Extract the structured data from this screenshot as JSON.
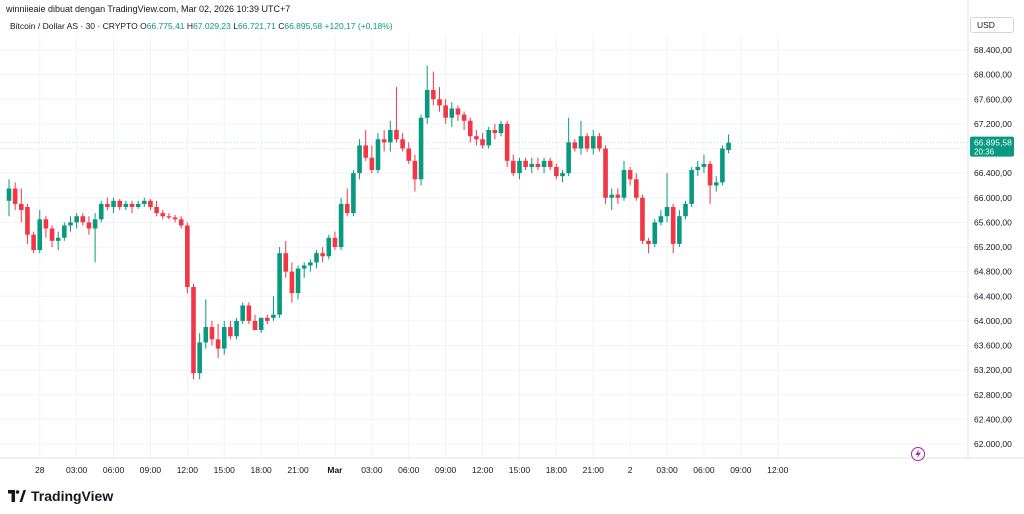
{
  "header": {
    "attribution": "winniieaie dibuat dengan TradingView.com, Mar 02, 2026 10:39 UTC+7"
  },
  "symbol": {
    "name": "Bitcoin / Dollar AS · 30 · CRYPTO",
    "o_label": "O",
    "o_value": "66.775,41",
    "h_label": "H",
    "h_value": "67.029,23",
    "l_label": "L",
    "l_value": "66.721,71",
    "c_label": "C",
    "c_value": "66.895,58",
    "change": "+120,17 (+0,18%)"
  },
  "currency": "USD",
  "last_price": {
    "value": "66.895,58",
    "countdown": "20:36"
  },
  "logo_text": "TradingView",
  "icons": [
    "lightning-icon",
    "tradingview-logo-icon"
  ],
  "colors": {
    "up": "#089981",
    "down": "#f23645",
    "grid": "#f0f3fa",
    "price_line": "#089981"
  },
  "chart_data": {
    "type": "candlestick",
    "ylim": [
      61700,
      68800
    ],
    "yticks": [
      "68.400,00",
      "68.000,00",
      "67.600,00",
      "67.200,00",
      "66.800,00",
      "66.400,00",
      "66.000,00",
      "65.600,00",
      "65.200,00",
      "64.800,00",
      "64.400,00",
      "64.000,00",
      "63.600,00",
      "63.200,00",
      "62.800,00",
      "62.400,00",
      "62.000,00"
    ],
    "ytick_values": [
      68400,
      68000,
      67600,
      67200,
      66800,
      66400,
      66000,
      65600,
      65200,
      64800,
      64400,
      64000,
      63600,
      63200,
      62800,
      62400,
      62000
    ],
    "xticks": [
      {
        "label": "28",
        "i": 5,
        "bold": false
      },
      {
        "label": "03:00",
        "i": 11,
        "bold": false
      },
      {
        "label": "06:00",
        "i": 17,
        "bold": false
      },
      {
        "label": "09:00",
        "i": 23,
        "bold": false
      },
      {
        "label": "12:00",
        "i": 29,
        "bold": false
      },
      {
        "label": "15:00",
        "i": 35,
        "bold": false
      },
      {
        "label": "18:00",
        "i": 41,
        "bold": false
      },
      {
        "label": "21:00",
        "i": 47,
        "bold": false
      },
      {
        "label": "Mar",
        "i": 53,
        "bold": true
      },
      {
        "label": "03:00",
        "i": 59,
        "bold": false
      },
      {
        "label": "06:00",
        "i": 65,
        "bold": false
      },
      {
        "label": "09:00",
        "i": 71,
        "bold": false
      },
      {
        "label": "12:00",
        "i": 77,
        "bold": false
      },
      {
        "label": "15:00",
        "i": 83,
        "bold": false
      },
      {
        "label": "18:00",
        "i": 89,
        "bold": false
      },
      {
        "label": "21:00",
        "i": 95,
        "bold": false
      },
      {
        "label": "2",
        "i": 101,
        "bold": false
      },
      {
        "label": "03:00",
        "i": 107,
        "bold": false
      },
      {
        "label": "06:00",
        "i": 113,
        "bold": false
      },
      {
        "label": "09:00",
        "i": 119,
        "bold": false
      },
      {
        "label": "12:00",
        "i": 125,
        "bold": false
      }
    ],
    "last_price": 66895.58,
    "candles": [
      {
        "o": 65950,
        "h": 66300,
        "l": 65700,
        "c": 66150
      },
      {
        "o": 66150,
        "h": 66250,
        "l": 65800,
        "c": 65900
      },
      {
        "o": 65900,
        "h": 66150,
        "l": 65600,
        "c": 65800
      },
      {
        "o": 65850,
        "h": 65900,
        "l": 65250,
        "c": 65400
      },
      {
        "o": 65400,
        "h": 65450,
        "l": 65100,
        "c": 65150
      },
      {
        "o": 65150,
        "h": 65800,
        "l": 65100,
        "c": 65650
      },
      {
        "o": 65650,
        "h": 65700,
        "l": 65350,
        "c": 65500
      },
      {
        "o": 65500,
        "h": 65550,
        "l": 65200,
        "c": 65300
      },
      {
        "o": 65300,
        "h": 65450,
        "l": 65150,
        "c": 65350
      },
      {
        "o": 65350,
        "h": 65600,
        "l": 65300,
        "c": 65550
      },
      {
        "o": 65550,
        "h": 65700,
        "l": 65450,
        "c": 65600
      },
      {
        "o": 65600,
        "h": 65750,
        "l": 65500,
        "c": 65700
      },
      {
        "o": 65700,
        "h": 65750,
        "l": 65550,
        "c": 65600
      },
      {
        "o": 65600,
        "h": 65700,
        "l": 65400,
        "c": 65500
      },
      {
        "o": 65500,
        "h": 65750,
        "l": 64950,
        "c": 65650
      },
      {
        "o": 65650,
        "h": 65950,
        "l": 65600,
        "c": 65900
      },
      {
        "o": 65900,
        "h": 66000,
        "l": 65800,
        "c": 65850
      },
      {
        "o": 65850,
        "h": 66000,
        "l": 65750,
        "c": 65950
      },
      {
        "o": 65950,
        "h": 65980,
        "l": 65800,
        "c": 65850
      },
      {
        "o": 65850,
        "h": 65950,
        "l": 65800,
        "c": 65900
      },
      {
        "o": 65900,
        "h": 65950,
        "l": 65750,
        "c": 65850
      },
      {
        "o": 65850,
        "h": 65950,
        "l": 65820,
        "c": 65900
      },
      {
        "o": 65900,
        "h": 66000,
        "l": 65850,
        "c": 65950
      },
      {
        "o": 65950,
        "h": 65980,
        "l": 65800,
        "c": 65850
      },
      {
        "o": 65850,
        "h": 65950,
        "l": 65700,
        "c": 65750
      },
      {
        "o": 65750,
        "h": 65800,
        "l": 65650,
        "c": 65700
      },
      {
        "o": 65700,
        "h": 65750,
        "l": 65650,
        "c": 65680
      },
      {
        "o": 65680,
        "h": 65720,
        "l": 65600,
        "c": 65650
      },
      {
        "o": 65650,
        "h": 65700,
        "l": 65500,
        "c": 65550
      },
      {
        "o": 65550,
        "h": 65600,
        "l": 64450,
        "c": 64550
      },
      {
        "o": 64550,
        "h": 64600,
        "l": 63050,
        "c": 63150
      },
      {
        "o": 63150,
        "h": 63800,
        "l": 63050,
        "c": 63650
      },
      {
        "o": 63650,
        "h": 64350,
        "l": 63550,
        "c": 63900
      },
      {
        "o": 63900,
        "h": 64000,
        "l": 63600,
        "c": 63700
      },
      {
        "o": 63700,
        "h": 63950,
        "l": 63400,
        "c": 63550
      },
      {
        "o": 63550,
        "h": 64000,
        "l": 63450,
        "c": 63900
      },
      {
        "o": 63900,
        "h": 64000,
        "l": 63700,
        "c": 63750
      },
      {
        "o": 63750,
        "h": 64050,
        "l": 63700,
        "c": 64000
      },
      {
        "o": 64000,
        "h": 64300,
        "l": 63950,
        "c": 64250
      },
      {
        "o": 64250,
        "h": 64300,
        "l": 63950,
        "c": 64000
      },
      {
        "o": 64000,
        "h": 64100,
        "l": 63850,
        "c": 63850
      },
      {
        "o": 63850,
        "h": 64050,
        "l": 63800,
        "c": 64050
      },
      {
        "o": 64050,
        "h": 64100,
        "l": 63950,
        "c": 64000
      },
      {
        "o": 64050,
        "h": 64400,
        "l": 64000,
        "c": 64100
      },
      {
        "o": 64100,
        "h": 65200,
        "l": 64050,
        "c": 65100
      },
      {
        "o": 65100,
        "h": 65300,
        "l": 64700,
        "c": 64800
      },
      {
        "o": 64800,
        "h": 64950,
        "l": 64300,
        "c": 64450
      },
      {
        "o": 64450,
        "h": 64900,
        "l": 64350,
        "c": 64850
      },
      {
        "o": 64850,
        "h": 64950,
        "l": 64700,
        "c": 64900
      },
      {
        "o": 64900,
        "h": 65000,
        "l": 64800,
        "c": 64950
      },
      {
        "o": 64950,
        "h": 65150,
        "l": 64850,
        "c": 65100
      },
      {
        "o": 65100,
        "h": 65200,
        "l": 64950,
        "c": 65050
      },
      {
        "o": 65050,
        "h": 65400,
        "l": 65000,
        "c": 65350
      },
      {
        "o": 65350,
        "h": 65450,
        "l": 65150,
        "c": 65200
      },
      {
        "o": 65200,
        "h": 66000,
        "l": 65150,
        "c": 65900
      },
      {
        "o": 65900,
        "h": 66150,
        "l": 65700,
        "c": 65750
      },
      {
        "o": 65750,
        "h": 66450,
        "l": 65700,
        "c": 66400
      },
      {
        "o": 66400,
        "h": 66950,
        "l": 66300,
        "c": 66850
      },
      {
        "o": 66850,
        "h": 67100,
        "l": 66600,
        "c": 66650
      },
      {
        "o": 66650,
        "h": 66850,
        "l": 66400,
        "c": 66450
      },
      {
        "o": 66450,
        "h": 67050,
        "l": 66400,
        "c": 66950
      },
      {
        "o": 66950,
        "h": 67100,
        "l": 66750,
        "c": 66900
      },
      {
        "o": 66900,
        "h": 67250,
        "l": 66750,
        "c": 67100
      },
      {
        "o": 67100,
        "h": 67800,
        "l": 66900,
        "c": 66950
      },
      {
        "o": 66950,
        "h": 67050,
        "l": 66750,
        "c": 66800
      },
      {
        "o": 66800,
        "h": 66900,
        "l": 66550,
        "c": 66600
      },
      {
        "o": 66600,
        "h": 66700,
        "l": 66100,
        "c": 66300
      },
      {
        "o": 66300,
        "h": 67350,
        "l": 66200,
        "c": 67300
      },
      {
        "o": 67300,
        "h": 68150,
        "l": 67200,
        "c": 67750
      },
      {
        "o": 67750,
        "h": 68050,
        "l": 67500,
        "c": 67600
      },
      {
        "o": 67600,
        "h": 67800,
        "l": 67400,
        "c": 67500
      },
      {
        "o": 67500,
        "h": 67600,
        "l": 67200,
        "c": 67300
      },
      {
        "o": 67300,
        "h": 67550,
        "l": 67150,
        "c": 67450
      },
      {
        "o": 67450,
        "h": 67500,
        "l": 67250,
        "c": 67350
      },
      {
        "o": 67350,
        "h": 67400,
        "l": 67100,
        "c": 67250
      },
      {
        "o": 67250,
        "h": 67300,
        "l": 66900,
        "c": 67000
      },
      {
        "o": 67000,
        "h": 67100,
        "l": 66850,
        "c": 66950
      },
      {
        "o": 66950,
        "h": 67050,
        "l": 66800,
        "c": 66850
      },
      {
        "o": 66850,
        "h": 67150,
        "l": 66800,
        "c": 67100
      },
      {
        "o": 67100,
        "h": 67200,
        "l": 66950,
        "c": 67050
      },
      {
        "o": 67050,
        "h": 67250,
        "l": 67000,
        "c": 67200
      },
      {
        "o": 67200,
        "h": 67250,
        "l": 66500,
        "c": 66600
      },
      {
        "o": 66600,
        "h": 66700,
        "l": 66350,
        "c": 66400
      },
      {
        "o": 66400,
        "h": 66650,
        "l": 66300,
        "c": 66600
      },
      {
        "o": 66600,
        "h": 66650,
        "l": 66450,
        "c": 66500
      },
      {
        "o": 66500,
        "h": 66650,
        "l": 66400,
        "c": 66550
      },
      {
        "o": 66550,
        "h": 66650,
        "l": 66450,
        "c": 66500
      },
      {
        "o": 66500,
        "h": 66650,
        "l": 66400,
        "c": 66600
      },
      {
        "o": 66600,
        "h": 66650,
        "l": 66450,
        "c": 66500
      },
      {
        "o": 66500,
        "h": 66550,
        "l": 66300,
        "c": 66350
      },
      {
        "o": 66350,
        "h": 66450,
        "l": 66250,
        "c": 66400
      },
      {
        "o": 66400,
        "h": 67300,
        "l": 66350,
        "c": 66900
      },
      {
        "o": 66900,
        "h": 66950,
        "l": 66750,
        "c": 66800
      },
      {
        "o": 66800,
        "h": 67250,
        "l": 66700,
        "c": 67000
      },
      {
        "o": 67000,
        "h": 67050,
        "l": 66750,
        "c": 66800
      },
      {
        "o": 66800,
        "h": 67100,
        "l": 66700,
        "c": 67000
      },
      {
        "o": 67000,
        "h": 67050,
        "l": 66750,
        "c": 66800
      },
      {
        "o": 66800,
        "h": 66850,
        "l": 65900,
        "c": 66000
      },
      {
        "o": 66000,
        "h": 66150,
        "l": 65800,
        "c": 66050
      },
      {
        "o": 66050,
        "h": 66150,
        "l": 65900,
        "c": 66000
      },
      {
        "o": 66000,
        "h": 66600,
        "l": 65950,
        "c": 66450
      },
      {
        "o": 66450,
        "h": 66500,
        "l": 66200,
        "c": 66300
      },
      {
        "o": 66300,
        "h": 66400,
        "l": 65950,
        "c": 66000
      },
      {
        "o": 66000,
        "h": 66050,
        "l": 65250,
        "c": 65300
      },
      {
        "o": 65300,
        "h": 65350,
        "l": 65100,
        "c": 65250
      },
      {
        "o": 65250,
        "h": 65650,
        "l": 65200,
        "c": 65600
      },
      {
        "o": 65600,
        "h": 65800,
        "l": 65550,
        "c": 65700
      },
      {
        "o": 65700,
        "h": 66400,
        "l": 65600,
        "c": 65850
      },
      {
        "o": 65850,
        "h": 65900,
        "l": 65100,
        "c": 65250
      },
      {
        "o": 65250,
        "h": 65800,
        "l": 65200,
        "c": 65700
      },
      {
        "o": 65700,
        "h": 65950,
        "l": 65650,
        "c": 65900
      },
      {
        "o": 65900,
        "h": 66500,
        "l": 65850,
        "c": 66450
      },
      {
        "o": 66450,
        "h": 66600,
        "l": 66350,
        "c": 66500
      },
      {
        "o": 66500,
        "h": 66700,
        "l": 66400,
        "c": 66550
      },
      {
        "o": 66550,
        "h": 66600,
        "l": 65900,
        "c": 66200
      },
      {
        "o": 66200,
        "h": 66350,
        "l": 66100,
        "c": 66250
      },
      {
        "o": 66250,
        "h": 66850,
        "l": 66200,
        "c": 66800
      },
      {
        "o": 66775.41,
        "h": 67029.23,
        "l": 66721.71,
        "c": 66895.58
      }
    ]
  }
}
